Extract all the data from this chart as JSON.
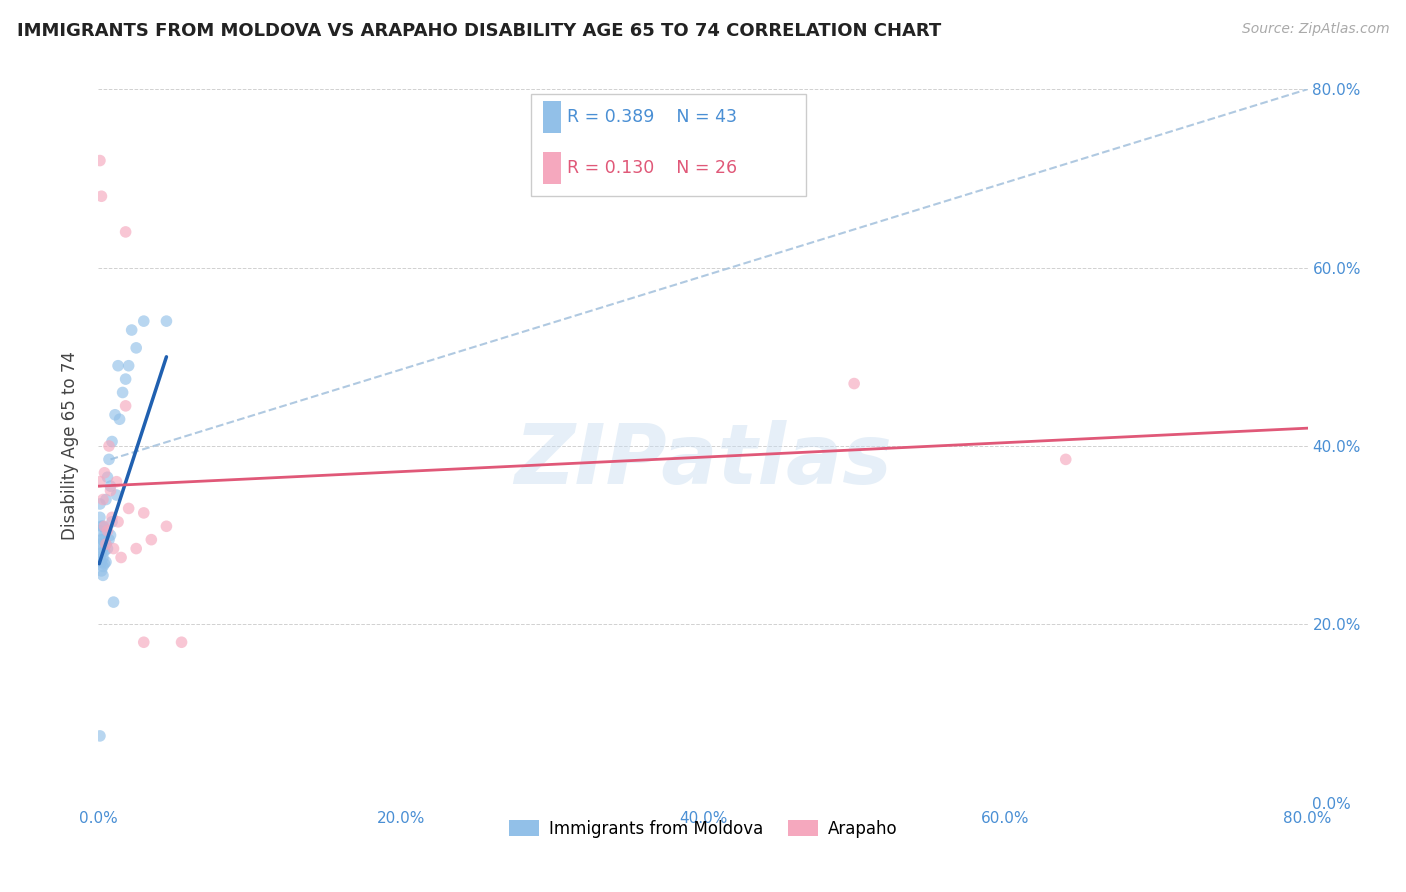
{
  "title": "IMMIGRANTS FROM MOLDOVA VS ARAPAHO DISABILITY AGE 65 TO 74 CORRELATION CHART",
  "source": "Source: ZipAtlas.com",
  "ylabel": "Disability Age 65 to 74",
  "xlim": [
    0.0,
    0.8
  ],
  "ylim": [
    0.0,
    0.8
  ],
  "x_ticks": [
    0.0,
    0.2,
    0.4,
    0.6,
    0.8
  ],
  "y_ticks": [
    0.0,
    0.2,
    0.4,
    0.6,
    0.8
  ],
  "legend_entries": [
    {
      "label": "Immigrants from Moldova",
      "color": "#92c0e8"
    },
    {
      "label": "Arapaho",
      "color": "#f5a8be"
    }
  ],
  "legend_stats": [
    {
      "R": "0.389",
      "N": "43",
      "color": "#4a8fd4"
    },
    {
      "R": "0.130",
      "N": "26",
      "color": "#e05878"
    }
  ],
  "watermark": "ZIPatlas",
  "blue_scatter_color": "#92c0e8",
  "pink_scatter_color": "#f5a8be",
  "blue_line_color": "#2060b0",
  "pink_line_color": "#e05878",
  "dashed_line_color": "#a8c4de",
  "tick_color": "#4a8fd4",
  "scatter_alpha": 0.65,
  "scatter_size": 70,
  "blue_x": [
    0.001,
    0.001,
    0.001,
    0.001,
    0.001,
    0.002,
    0.002,
    0.002,
    0.002,
    0.002,
    0.003,
    0.003,
    0.003,
    0.003,
    0.003,
    0.003,
    0.004,
    0.004,
    0.004,
    0.005,
    0.005,
    0.005,
    0.006,
    0.006,
    0.007,
    0.007,
    0.008,
    0.008,
    0.009,
    0.009,
    0.01,
    0.011,
    0.012,
    0.013,
    0.014,
    0.016,
    0.018,
    0.02,
    0.022,
    0.025,
    0.03,
    0.045,
    0.001
  ],
  "blue_y": [
    0.275,
    0.29,
    0.305,
    0.32,
    0.335,
    0.26,
    0.27,
    0.28,
    0.295,
    0.31,
    0.255,
    0.265,
    0.275,
    0.285,
    0.295,
    0.31,
    0.268,
    0.282,
    0.3,
    0.27,
    0.29,
    0.34,
    0.285,
    0.365,
    0.295,
    0.385,
    0.3,
    0.355,
    0.315,
    0.405,
    0.225,
    0.435,
    0.345,
    0.49,
    0.43,
    0.46,
    0.475,
    0.49,
    0.53,
    0.51,
    0.54,
    0.54,
    0.075
  ],
  "pink_x": [
    0.001,
    0.001,
    0.002,
    0.003,
    0.004,
    0.004,
    0.005,
    0.006,
    0.007,
    0.008,
    0.009,
    0.01,
    0.012,
    0.013,
    0.015,
    0.018,
    0.02,
    0.025,
    0.03,
    0.035,
    0.045,
    0.055,
    0.5,
    0.64,
    0.018,
    0.03
  ],
  "pink_y": [
    0.72,
    0.36,
    0.68,
    0.34,
    0.31,
    0.37,
    0.29,
    0.305,
    0.4,
    0.35,
    0.32,
    0.285,
    0.36,
    0.315,
    0.275,
    0.445,
    0.33,
    0.285,
    0.325,
    0.295,
    0.31,
    0.18,
    0.47,
    0.385,
    0.64,
    0.18
  ],
  "blue_trend_x": [
    0.0005,
    0.045
  ],
  "blue_trend_y": [
    0.268,
    0.5
  ],
  "pink_trend_x": [
    0.0,
    0.8
  ],
  "pink_trend_y": [
    0.355,
    0.42
  ],
  "dashed_trend_x": [
    0.008,
    0.8
  ],
  "dashed_trend_y": [
    0.385,
    0.8
  ]
}
